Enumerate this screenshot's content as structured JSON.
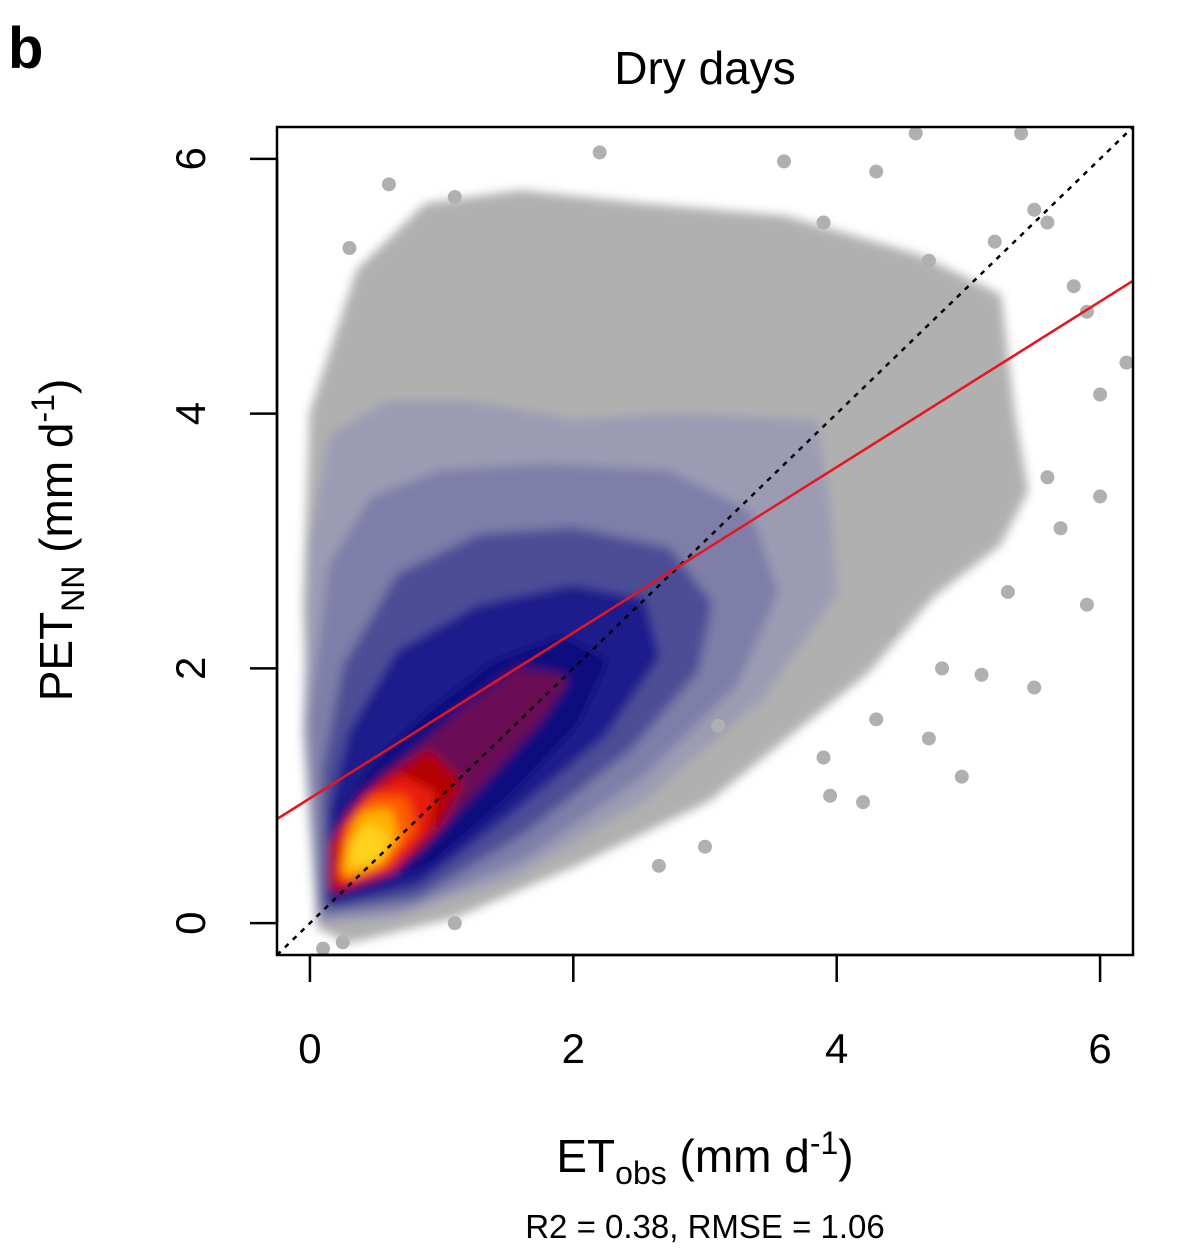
{
  "chart_data": {
    "type": "scatter",
    "panel_label": "b",
    "title": "Dry days",
    "xlabel": {
      "main": "ET",
      "sub": "obs",
      "unit_open": " (mm d",
      "sup": "-1",
      "unit_close": ")"
    },
    "ylabel": {
      "main": "PET",
      "sub": "NN",
      "unit_open": " (mm d",
      "sup": "-1",
      "unit_close": ")"
    },
    "xlim": [
      -0.25,
      6.25
    ],
    "ylim": [
      -0.25,
      6.25
    ],
    "xticks": [
      0,
      2,
      4,
      6
    ],
    "yticks": [
      0,
      2,
      4,
      6
    ],
    "annotation": "R2 = 0.38, RMSE = 1.06",
    "one_to_one_line": {
      "from": [
        -0.25,
        -0.25
      ],
      "to": [
        6.25,
        6.25
      ],
      "style": "dotted",
      "color": "#000000"
    },
    "regression_line": {
      "intercept": 0.98,
      "slope": 0.65,
      "color": "#e8141e"
    },
    "density_colors": {
      "background_points": "#b0b0b0",
      "levels": [
        "#9b9bb4",
        "#7e7ea8",
        "#4d4d96",
        "#1c1c8c",
        "#0a0a80",
        "#6a0a55",
        "#b30000",
        "#e81a0a",
        "#ff5a00",
        "#ffb000",
        "#ffd21e"
      ]
    },
    "outlier_points": [
      [
        4.6,
        6.2
      ],
      [
        5.4,
        6.2
      ],
      [
        2.2,
        6.05
      ],
      [
        3.6,
        5.98
      ],
      [
        4.3,
        5.9
      ],
      [
        0.6,
        5.8
      ],
      [
        1.1,
        5.7
      ],
      [
        1.9,
        5.6
      ],
      [
        3.9,
        5.5
      ],
      [
        5.5,
        5.6
      ],
      [
        5.6,
        5.5
      ],
      [
        5.2,
        5.35
      ],
      [
        3.0,
        5.3
      ],
      [
        0.3,
        5.3
      ],
      [
        4.7,
        5.2
      ],
      [
        2.7,
        5.1
      ],
      [
        1.5,
        5.4
      ],
      [
        5.8,
        5.0
      ],
      [
        6.2,
        4.4
      ],
      [
        5.9,
        4.8
      ],
      [
        6.0,
        4.15
      ],
      [
        5.1,
        3.7
      ],
      [
        5.6,
        3.5
      ],
      [
        6.0,
        3.35
      ],
      [
        5.9,
        2.5
      ],
      [
        5.5,
        1.85
      ],
      [
        5.1,
        1.95
      ],
      [
        4.95,
        1.15
      ],
      [
        4.3,
        1.6
      ],
      [
        4.7,
        1.45
      ],
      [
        4.2,
        0.95
      ],
      [
        3.95,
        1.0
      ],
      [
        3.9,
        1.3
      ],
      [
        3.1,
        1.55
      ],
      [
        3.0,
        0.6
      ],
      [
        2.65,
        0.45
      ],
      [
        1.1,
        0.0
      ],
      [
        0.25,
        -0.15
      ],
      [
        0.1,
        -0.2
      ],
      [
        4.8,
        2.0
      ],
      [
        4.4,
        2.3
      ],
      [
        5.3,
        2.6
      ],
      [
        5.7,
        3.1
      ]
    ]
  }
}
